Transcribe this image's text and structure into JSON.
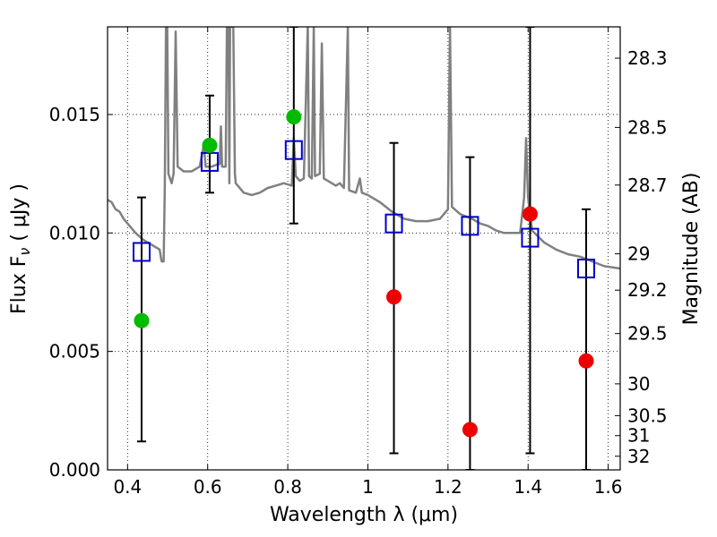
{
  "chart_data": {
    "type": "scatter",
    "xlabel": "Wavelength  λ (μm)",
    "ylabel": "Flux  F",
    "ylabel_sub": "ν",
    "ylabel_unit": "  ( μJy )",
    "y2label": "Magnitude (AB)",
    "xlim": [
      0.35,
      1.63
    ],
    "ylim": [
      0.0,
      0.0187
    ],
    "xticks": [
      0.4,
      0.6,
      0.8,
      1.0,
      1.2,
      1.4,
      1.6
    ],
    "xtick_labels": [
      "0.4",
      "0.6",
      "0.8",
      "1",
      "1.2",
      "1.4",
      "1.6"
    ],
    "yticks": [
      0.0,
      0.005,
      0.01,
      0.015
    ],
    "ytick_labels": [
      "0.000",
      "0.005",
      "0.010",
      "0.015"
    ],
    "y2ticks": [
      {
        "mag": 28.3,
        "label": "28.3"
      },
      {
        "mag": 28.5,
        "label": "28.5"
      },
      {
        "mag": 28.7,
        "label": "28.7"
      },
      {
        "mag": 29.0,
        "label": "29"
      },
      {
        "mag": 29.2,
        "label": "29.2"
      },
      {
        "mag": 29.5,
        "label": "29.5"
      },
      {
        "mag": 30.0,
        "label": "30"
      },
      {
        "mag": 30.5,
        "label": "30.5"
      },
      {
        "mag": 31.0,
        "label": "31"
      },
      {
        "mag": 32.0,
        "label": "32"
      }
    ],
    "grid": true,
    "model_color": "#808080",
    "errorbar_color": "#000000",
    "model_points_color": "#0000cc",
    "model_sed": [
      [
        0.35,
        0.0114
      ],
      [
        0.36,
        0.0113
      ],
      [
        0.37,
        0.011
      ],
      [
        0.38,
        0.0109
      ],
      [
        0.39,
        0.0106
      ],
      [
        0.4,
        0.0104
      ],
      [
        0.42,
        0.01
      ],
      [
        0.44,
        0.0097
      ],
      [
        0.46,
        0.0095
      ],
      [
        0.48,
        0.0093
      ],
      [
        0.485,
        0.0088
      ],
      [
        0.49,
        0.0088
      ],
      [
        0.493,
        0.012
      ],
      [
        0.496,
        0.0187
      ],
      [
        0.499,
        0.0187
      ],
      [
        0.502,
        0.0125
      ],
      [
        0.51,
        0.0121
      ],
      [
        0.515,
        0.0125
      ],
      [
        0.52,
        0.0185
      ],
      [
        0.525,
        0.0128
      ],
      [
        0.54,
        0.0126
      ],
      [
        0.56,
        0.0126
      ],
      [
        0.58,
        0.0128
      ],
      [
        0.59,
        0.0137
      ],
      [
        0.595,
        0.0128
      ],
      [
        0.61,
        0.0128
      ],
      [
        0.625,
        0.0129
      ],
      [
        0.63,
        0.0129
      ],
      [
        0.633,
        0.0145
      ],
      [
        0.636,
        0.0128
      ],
      [
        0.645,
        0.0128
      ],
      [
        0.648,
        0.0187
      ],
      [
        0.652,
        0.0187
      ],
      [
        0.654,
        0.0121
      ],
      [
        0.656,
        0.0187
      ],
      [
        0.66,
        0.0187
      ],
      [
        0.664,
        0.0187
      ],
      [
        0.668,
        0.0125
      ],
      [
        0.67,
        0.0121
      ],
      [
        0.69,
        0.0117
      ],
      [
        0.71,
        0.0116
      ],
      [
        0.73,
        0.0117
      ],
      [
        0.75,
        0.0119
      ],
      [
        0.77,
        0.012
      ],
      [
        0.79,
        0.0121
      ],
      [
        0.81,
        0.012
      ],
      [
        0.815,
        0.014
      ],
      [
        0.82,
        0.0124
      ],
      [
        0.83,
        0.0122
      ],
      [
        0.84,
        0.0123
      ],
      [
        0.85,
        0.0187
      ],
      [
        0.853,
        0.0124
      ],
      [
        0.86,
        0.0123
      ],
      [
        0.865,
        0.0187
      ],
      [
        0.868,
        0.0124
      ],
      [
        0.88,
        0.0125
      ],
      [
        0.885,
        0.018
      ],
      [
        0.89,
        0.0123
      ],
      [
        0.9,
        0.0122
      ],
      [
        0.92,
        0.012
      ],
      [
        0.93,
        0.0121
      ],
      [
        0.94,
        0.0119
      ],
      [
        0.95,
        0.0187
      ],
      [
        0.953,
        0.0118
      ],
      [
        0.97,
        0.0117
      ],
      [
        0.98,
        0.0123
      ],
      [
        0.985,
        0.0117
      ],
      [
        1.0,
        0.0116
      ],
      [
        1.03,
        0.0113
      ],
      [
        1.06,
        0.0109
      ],
      [
        1.09,
        0.0106
      ],
      [
        1.12,
        0.0105
      ],
      [
        1.15,
        0.0105
      ],
      [
        1.18,
        0.0106
      ],
      [
        1.2,
        0.011
      ],
      [
        1.205,
        0.0187
      ],
      [
        1.21,
        0.0111
      ],
      [
        1.23,
        0.0108
      ],
      [
        1.26,
        0.0106
      ],
      [
        1.28,
        0.0104
      ],
      [
        1.3,
        0.0103
      ],
      [
        1.32,
        0.0101
      ],
      [
        1.34,
        0.01
      ],
      [
        1.36,
        0.01
      ],
      [
        1.38,
        0.01
      ],
      [
        1.39,
        0.0115
      ],
      [
        1.395,
        0.014
      ],
      [
        1.4,
        0.0115
      ],
      [
        1.41,
        0.0101
      ],
      [
        1.44,
        0.0096
      ],
      [
        1.47,
        0.0093
      ],
      [
        1.5,
        0.0091
      ],
      [
        1.53,
        0.009
      ],
      [
        1.56,
        0.0088
      ],
      [
        1.59,
        0.0086
      ],
      [
        1.63,
        0.0085
      ]
    ],
    "model_points": [
      {
        "x": 0.435,
        "y": 0.0092
      },
      {
        "x": 0.605,
        "y": 0.013
      },
      {
        "x": 0.815,
        "y": 0.0135
      },
      {
        "x": 1.065,
        "y": 0.0104
      },
      {
        "x": 1.255,
        "y": 0.0103
      },
      {
        "x": 1.405,
        "y": 0.0098
      },
      {
        "x": 1.545,
        "y": 0.0085
      }
    ],
    "observations": [
      {
        "x": 0.435,
        "y": 0.0063,
        "yerr_low": 0.0012,
        "yerr_high": 0.0115,
        "color": "#00bb00"
      },
      {
        "x": 0.605,
        "y": 0.0137,
        "yerr_low": 0.0117,
        "yerr_high": 0.0158,
        "color": "#00bb00"
      },
      {
        "x": 0.815,
        "y": 0.0149,
        "yerr_low": 0.0104,
        "yerr_high": 0.0187,
        "color": "#00bb00"
      },
      {
        "x": 1.065,
        "y": 0.0073,
        "yerr_low": 0.0007,
        "yerr_high": 0.0138,
        "color": "#ee0000"
      },
      {
        "x": 1.255,
        "y": 0.0017,
        "yerr_low": 0.0,
        "yerr_high": 0.0132,
        "color": "#ee0000"
      },
      {
        "x": 1.405,
        "y": 0.0108,
        "yerr_low": 0.0007,
        "yerr_high": 0.0187,
        "color": "#ee0000"
      },
      {
        "x": 1.545,
        "y": 0.0046,
        "yerr_low": 0.0,
        "yerr_high": 0.011,
        "color": "#ee0000"
      }
    ]
  }
}
